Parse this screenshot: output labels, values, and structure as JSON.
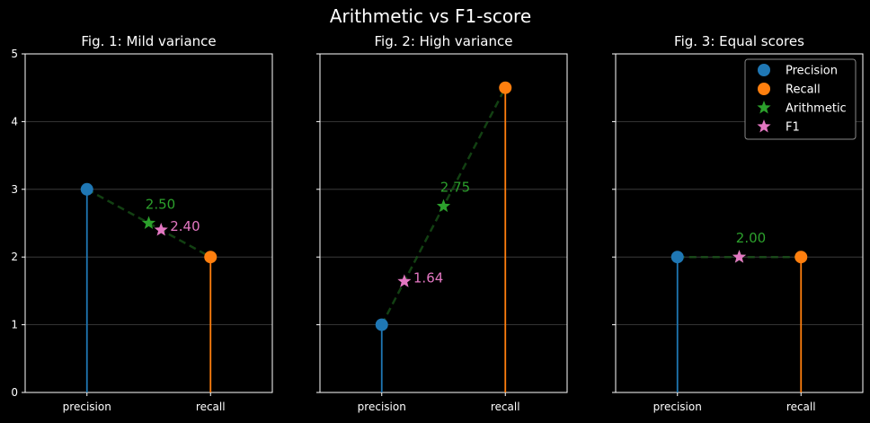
{
  "title": "Arithmetic vs F1-score",
  "colors": {
    "precision": "#1f77b4",
    "recall": "#ff7f0e",
    "arithmetic": "#2ca02c",
    "f1": "#e377c2",
    "background": "#000000",
    "axes": "#ffffff"
  },
  "legend": {
    "placement": "top-right of third panel",
    "entries": [
      {
        "label": "Precision",
        "marker": "circle",
        "color": "#1f77b4"
      },
      {
        "label": "Recall",
        "marker": "circle",
        "color": "#ff7f0e"
      },
      {
        "label": "Arithmetic",
        "marker": "star",
        "color": "#2ca02c"
      },
      {
        "label": "F1",
        "marker": "star",
        "color": "#e377c2"
      }
    ]
  },
  "chart_data": [
    {
      "type": "scatter",
      "title": "Fig. 1: Mild variance",
      "categories": [
        "precision",
        "recall"
      ],
      "precision": 3,
      "recall": 2,
      "arithmetic": 2.5,
      "f1": 2.4,
      "arithmetic_label": "2.50",
      "f1_label": "2.40",
      "ylim": [
        0,
        5
      ],
      "yticks": [
        "0",
        "1",
        "2",
        "3",
        "4",
        "5"
      ],
      "grid": "horizontal"
    },
    {
      "type": "scatter",
      "title": "Fig. 2: High variance",
      "categories": [
        "precision",
        "recall"
      ],
      "precision": 1,
      "recall": 4.5,
      "arithmetic": 2.75,
      "f1": 1.64,
      "arithmetic_label": "2.75",
      "f1_label": "1.64",
      "ylim": [
        0,
        5
      ],
      "grid": "horizontal"
    },
    {
      "type": "scatter",
      "title": "Fig. 3: Equal scores",
      "categories": [
        "precision",
        "recall"
      ],
      "precision": 2,
      "recall": 2,
      "arithmetic": 2.0,
      "f1": 2.0,
      "arithmetic_label": "2.00",
      "f1_label": "",
      "ylim": [
        0,
        5
      ],
      "grid": "horizontal"
    }
  ]
}
